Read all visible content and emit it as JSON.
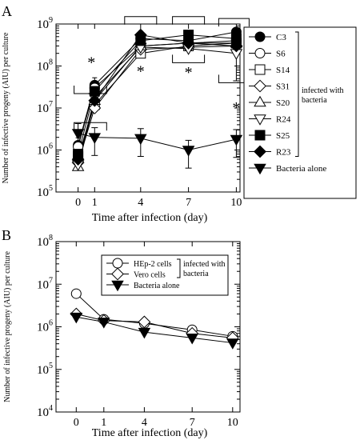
{
  "chart_data": [
    {
      "panel": "A",
      "type": "line",
      "y_scale": "log",
      "ylim": [
        100000,
        1000000000
      ],
      "ylabel": "Number of infective progeny (AIU) per culture",
      "xlabel": "Time after infection (day)",
      "x": [
        "0",
        "1",
        "4",
        "7",
        "10"
      ],
      "y_ticks": [
        {
          "value": 100000,
          "base": "10",
          "exp": "5"
        },
        {
          "value": 1000000,
          "base": "10",
          "exp": "6"
        },
        {
          "value": 10000000,
          "base": "10",
          "exp": "7"
        },
        {
          "value": 100000000,
          "base": "10",
          "exp": "8"
        },
        {
          "value": 1000000000,
          "base": "10",
          "exp": "9"
        }
      ],
      "legend_group_label": [
        "infected with",
        "bacteria"
      ],
      "legend_placement": "right, outside plot",
      "significance_marker": "*",
      "series": [
        {
          "name": "C3",
          "marker": "circle",
          "filled": true,
          "values": [
            1300000,
            35000000,
            450000000,
            400000000,
            650000000
          ]
        },
        {
          "name": "S6",
          "marker": "circle",
          "filled": false,
          "values": [
            1200000,
            30000000,
            300000000,
            350000000,
            400000000
          ]
        },
        {
          "name": "S14",
          "marker": "square",
          "filled": false,
          "values": [
            700000,
            12000000,
            200000000,
            300000000,
            350000000
          ]
        },
        {
          "name": "S31",
          "marker": "diamond",
          "filled": false,
          "values": [
            500000,
            10000000,
            250000000,
            280000000,
            300000000
          ]
        },
        {
          "name": "S20",
          "marker": "triangle-up",
          "filled": false,
          "values": [
            400000,
            15000000,
            300000000,
            350000000,
            350000000
          ]
        },
        {
          "name": "R24",
          "marker": "triangle-down",
          "filled": false,
          "values": [
            450000,
            18000000,
            280000000,
            260000000,
            200000000
          ]
        },
        {
          "name": "S25",
          "marker": "square",
          "filled": true,
          "values": [
            800000,
            25000000,
            400000000,
            550000000,
            450000000
          ]
        },
        {
          "name": "R23",
          "marker": "diamond",
          "filled": true,
          "values": [
            600000,
            15000000,
            550000000,
            350000000,
            300000000
          ]
        },
        {
          "name": "Bacteria alone",
          "marker": "triangle-down",
          "filled": true,
          "values": [
            2500000,
            2000000,
            1900000,
            1000000,
            1800000
          ]
        }
      ]
    },
    {
      "panel": "B",
      "type": "line",
      "y_scale": "log",
      "ylim": [
        10000,
        100000000
      ],
      "ylabel": "Number of infective progeny (AIU) per culture",
      "xlabel": "Time after infection (day)",
      "x": [
        "0",
        "1",
        "4",
        "7",
        "10"
      ],
      "y_ticks": [
        {
          "value": 10000,
          "base": "10",
          "exp": "4"
        },
        {
          "value": 100000,
          "base": "10",
          "exp": "5"
        },
        {
          "value": 1000000,
          "base": "10",
          "exp": "6"
        },
        {
          "value": 10000000,
          "base": "10",
          "exp": "7"
        },
        {
          "value": 100000000,
          "base": "10",
          "exp": "8"
        }
      ],
      "legend_group_label": [
        "infected with",
        "bacteria"
      ],
      "legend_placement": "top-right, inside plot",
      "series": [
        {
          "name": "HEp-2 cells",
          "marker": "circle",
          "filled": false,
          "values": [
            6000000,
            1500000,
            1200000,
            850000,
            600000
          ]
        },
        {
          "name": "Vero cells",
          "marker": "diamond",
          "filled": false,
          "values": [
            2000000,
            1400000,
            1300000,
            700000,
            550000
          ]
        },
        {
          "name": "Bacteria alone",
          "marker": "triangle-down",
          "filled": true,
          "values": [
            1700000,
            1300000,
            750000,
            550000,
            420000
          ]
        }
      ]
    }
  ],
  "labels": {
    "panel_a": "A",
    "panel_b": "B"
  }
}
